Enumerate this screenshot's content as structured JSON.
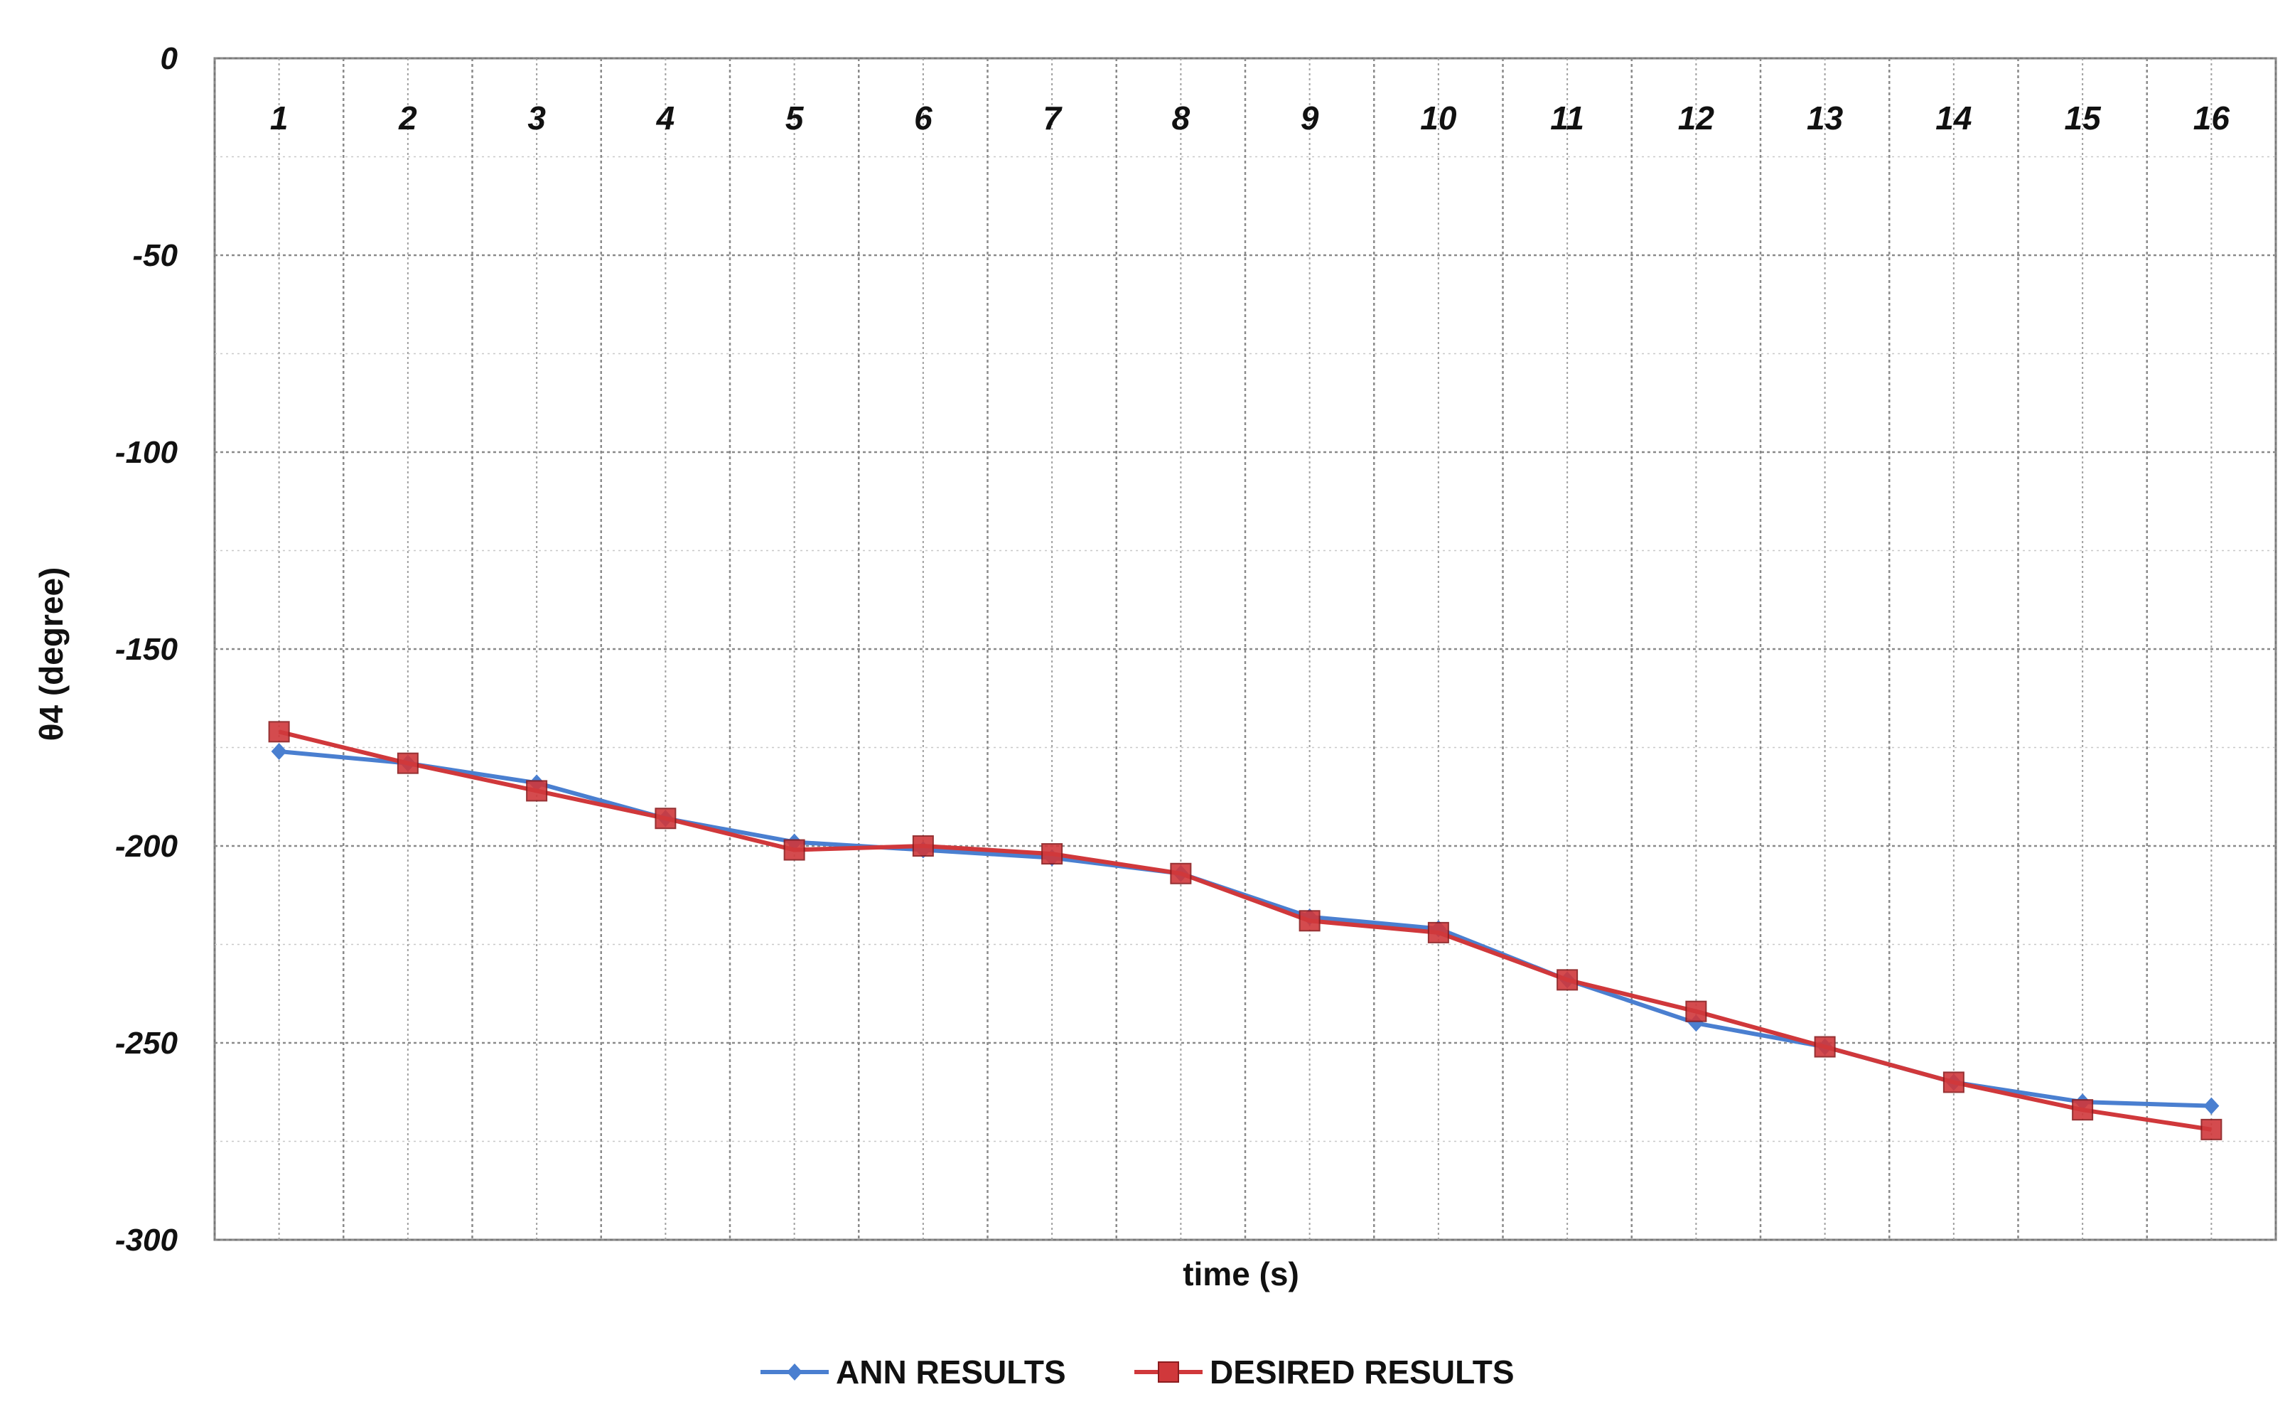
{
  "chart_data": {
    "type": "line",
    "x": [
      1,
      2,
      3,
      4,
      5,
      6,
      7,
      8,
      9,
      10,
      11,
      12,
      13,
      14,
      15,
      16
    ],
    "xlabel": "time (s)",
    "ylabel": "θ4 (degree)",
    "ylim": [
      -300,
      0
    ],
    "yticks": [
      0,
      -50,
      -100,
      -150,
      -200,
      -250,
      -300
    ],
    "grid": true,
    "legend_position": "bottom",
    "series": [
      {
        "name": "ANN RESULTS",
        "color": "#4a7fd0",
        "marker": "diamond",
        "values": [
          -176,
          -179,
          -184,
          -193,
          -199,
          -201,
          -203,
          -207,
          -218,
          -221,
          -234,
          -245,
          -251,
          -260,
          -265,
          -266
        ]
      },
      {
        "name": "DESIRED RESULTS",
        "color": "#d0383b",
        "marker": "square",
        "values": [
          -171,
          -179,
          -186,
          -193,
          -201,
          -200,
          -202,
          -207,
          -219,
          -222,
          -234,
          -242,
          -251,
          -260,
          -267,
          -272
        ]
      }
    ]
  }
}
